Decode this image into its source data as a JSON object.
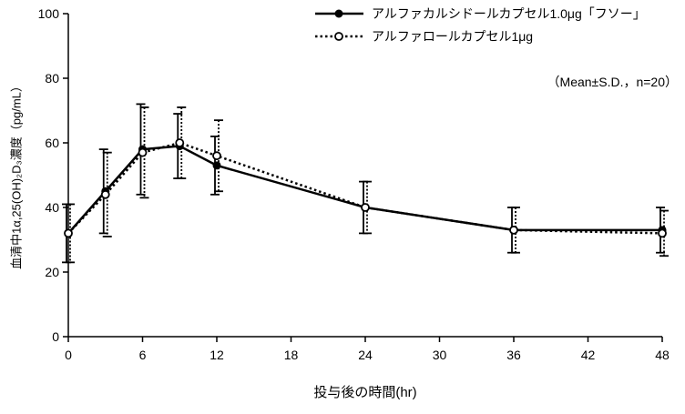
{
  "chart_data": {
    "type": "line",
    "x": [
      0,
      3,
      6,
      9,
      12,
      24,
      36,
      48
    ],
    "series": [
      {
        "name": "アルファカルシドールカプセル1.0μg「フソー」",
        "style": "solid",
        "marker": "filled-circle",
        "values": [
          32,
          45,
          58,
          59,
          53,
          40,
          33,
          33
        ],
        "sd": [
          9,
          13,
          14,
          10,
          9,
          8,
          7,
          7
        ]
      },
      {
        "name": "アルファロールカプセル1μg",
        "style": "dotted",
        "marker": "open-circle",
        "values": [
          32,
          44,
          57,
          60,
          56,
          40,
          33,
          32
        ],
        "sd": [
          9,
          13,
          14,
          11,
          11,
          8,
          7,
          7
        ]
      }
    ],
    "annotation": "（Mean±S.D.，n=20）",
    "xlabel": "投与後の時間(hr)",
    "ylabel": "血清中1α,25(OH)₂D₃濃度（pg/mL）",
    "xlim": [
      0,
      48
    ],
    "ylim": [
      0,
      100
    ],
    "xticks": [
      0,
      6,
      12,
      18,
      24,
      30,
      36,
      42,
      48
    ],
    "yticks": [
      0,
      20,
      40,
      60,
      80,
      100
    ],
    "grid": false,
    "legend_position": "top",
    "line_color": "#000000",
    "background_color": "#ffffff"
  }
}
